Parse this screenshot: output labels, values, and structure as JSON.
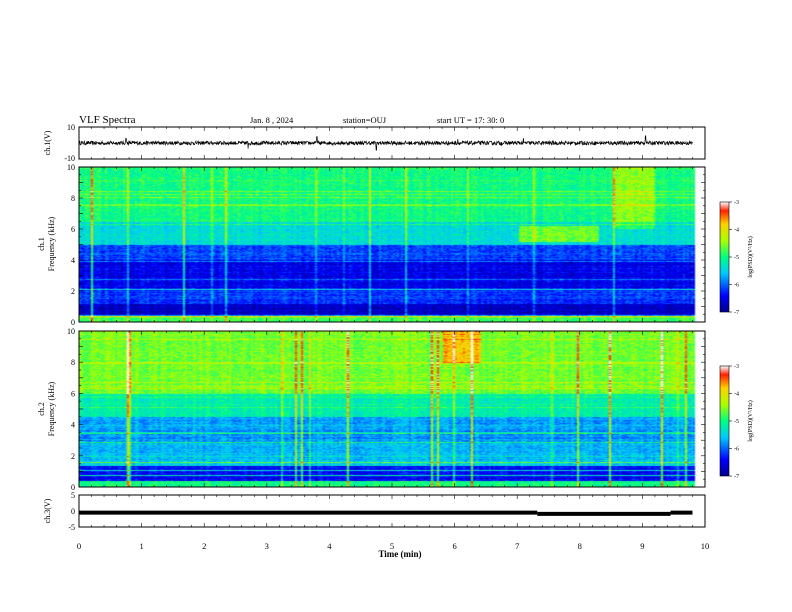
{
  "header": {
    "title": "VLF Spectra",
    "date": "Jan. 8 , 2024",
    "station": "station=OUJ",
    "start": "start UT = 17: 30: 0"
  },
  "chart_data": [
    {
      "type": "line",
      "name": "ch1-waveform",
      "ylabel": "ch.1(V)",
      "ylim": [
        -10,
        10
      ],
      "yticks": [
        "10",
        "-10"
      ],
      "xlim": [
        0,
        9.8
      ],
      "baseline": 0,
      "amplitude_typical": 1.2,
      "spikes": [
        [
          0.75,
          3
        ],
        [
          2.7,
          -3.5
        ],
        [
          3.8,
          4
        ],
        [
          4.75,
          -4.5
        ],
        [
          6.05,
          2.5
        ],
        [
          7.1,
          3
        ],
        [
          9.05,
          4.5
        ]
      ]
    },
    {
      "type": "heatmap",
      "name": "ch1-spectrogram",
      "ylabel": "ch.1",
      "ylabel2": "Frequency (kHz)",
      "xlim": [
        0,
        10
      ],
      "ylim": [
        0,
        10
      ],
      "yticks": [
        "0",
        "2",
        "4",
        "6",
        "8",
        "10"
      ],
      "colorbar": {
        "label": "log(PSD)(V²/Hz)",
        "range": [
          -7,
          -3
        ],
        "ticks": [
          "-3",
          "-4",
          "-5",
          "-6",
          "-7"
        ]
      },
      "data_end_min": 9.85
    },
    {
      "type": "heatmap",
      "name": "ch2-spectrogram",
      "ylabel": "ch.2",
      "ylabel2": "Frequency (kHz)",
      "xlim": [
        0,
        10
      ],
      "ylim": [
        0,
        10
      ],
      "yticks": [
        "0",
        "2",
        "4",
        "6",
        "8",
        "10"
      ],
      "colorbar": {
        "label": "log(PSD)(V²/Hz)",
        "range": [
          -7,
          -3
        ],
        "ticks": [
          "-3",
          "-4",
          "-5",
          "-6",
          "-7"
        ]
      },
      "data_end_min": 9.85
    },
    {
      "type": "line",
      "name": "ch3-level",
      "ylabel": "ch.3(V)",
      "ylim": [
        -5,
        5
      ],
      "yticks": [
        "5",
        "0",
        "-5"
      ],
      "xlim": [
        0,
        9.8
      ],
      "segments": [
        {
          "x": [
            0,
            7.32
          ],
          "y": -0.5
        },
        {
          "x": [
            7.32,
            9.45
          ],
          "y": -0.9
        },
        {
          "x": [
            9.45,
            9.8
          ],
          "y": -0.5
        }
      ]
    }
  ],
  "xaxis": {
    "label": "Time (min)",
    "range": [
      0,
      10
    ],
    "ticks": [
      "0",
      "1",
      "2",
      "3",
      "4",
      "5",
      "6",
      "7",
      "8",
      "9",
      "10"
    ]
  }
}
